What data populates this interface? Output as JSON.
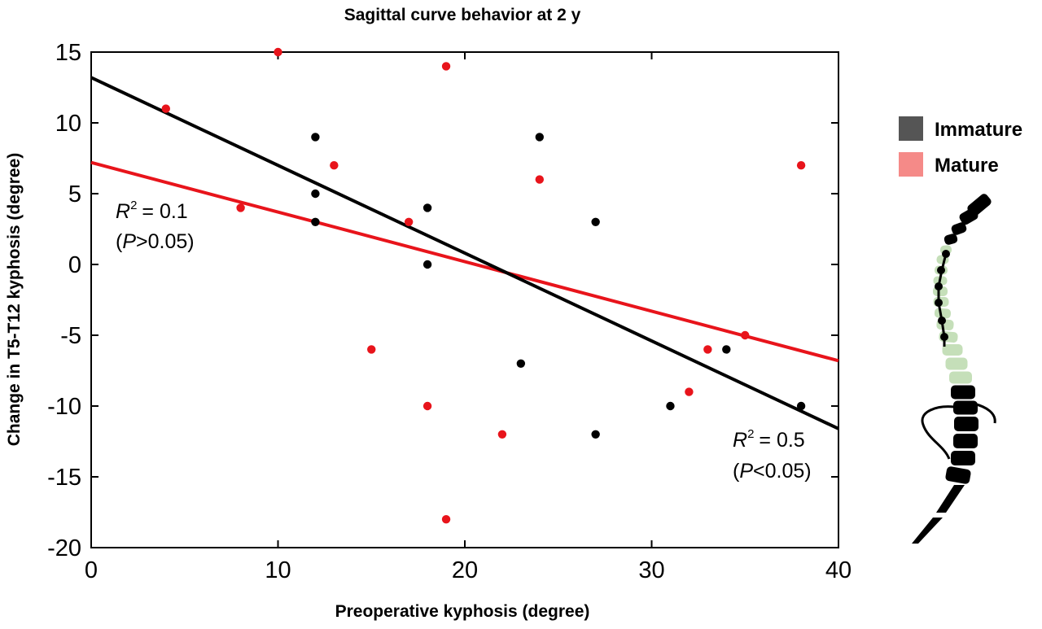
{
  "chart_data": {
    "type": "scatter",
    "title": "Sagittal curve behavior at 2 y",
    "xlabel": "Preoperative kyphosis (degree)",
    "ylabel": "Change in T5-T12 kyphosis (degree)",
    "xlim": [
      0,
      40
    ],
    "ylim": [
      -20,
      15
    ],
    "x_ticks": [
      0,
      10,
      20,
      30,
      40
    ],
    "y_ticks": [
      -20,
      -15,
      -10,
      -5,
      0,
      5,
      10,
      15
    ],
    "grid": false,
    "legend_position": "right",
    "series": [
      {
        "name": "Immature",
        "color": "#000000",
        "legend_color": "#555555",
        "points": [
          [
            12,
            9
          ],
          [
            12,
            5
          ],
          [
            12,
            3
          ],
          [
            18,
            4
          ],
          [
            18,
            0
          ],
          [
            23,
            -7
          ],
          [
            24,
            9
          ],
          [
            27,
            3
          ],
          [
            27,
            -12
          ],
          [
            31,
            -10
          ],
          [
            34,
            -6
          ],
          [
            38,
            -10
          ]
        ],
        "fit": {
          "x": [
            0,
            40
          ],
          "y": [
            13.2,
            -11.6
          ]
        }
      },
      {
        "name": "Mature",
        "color": "#e8141b",
        "legend_color": "#f58a88",
        "points": [
          [
            4,
            11
          ],
          [
            8,
            4
          ],
          [
            10,
            15
          ],
          [
            13,
            7
          ],
          [
            15,
            -6
          ],
          [
            17,
            3
          ],
          [
            18,
            -10
          ],
          [
            19,
            14
          ],
          [
            19,
            -18
          ],
          [
            22,
            -12
          ],
          [
            24,
            6
          ],
          [
            32,
            -9
          ],
          [
            33,
            -6
          ],
          [
            35,
            -5
          ],
          [
            38,
            7
          ]
        ],
        "fit": {
          "x": [
            0,
            40
          ],
          "y": [
            7.2,
            -6.8
          ]
        }
      }
    ],
    "annotations": [
      {
        "id": "mature-fit",
        "r2_label": "R",
        "r2_value": "= 0.1",
        "p_open": "(",
        "p_var": "P",
        "p_rest": ">0.05)"
      },
      {
        "id": "immature-fit",
        "r2_label": "R",
        "r2_value": "= 0.5",
        "p_open": "(",
        "p_var": "P",
        "p_rest": "<0.05)"
      }
    ]
  },
  "illustration": {
    "icon": "spine-icon",
    "highlight_color": "#c5dfb9",
    "vertebra_color": "#000000"
  }
}
